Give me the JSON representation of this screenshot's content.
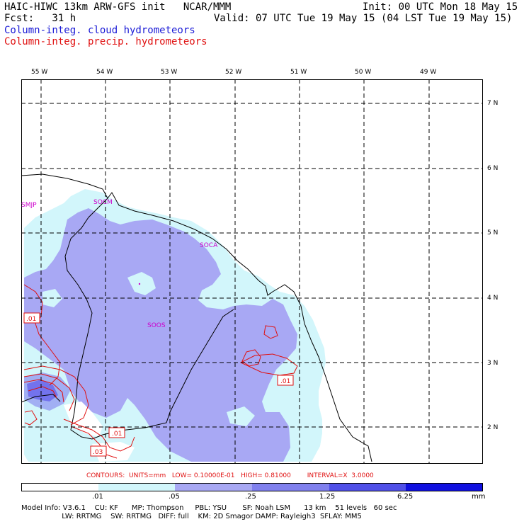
{
  "header": {
    "model_title": "HAIC-HIWC 13km ARW-GFS init   NCAR/MMM",
    "init_time": "Init: 00 UTC Mon 18 May 15",
    "forecast": "Fcst:   31 h",
    "valid_time": "Valid: 07 UTC Tue 19 May 15 (04 LST Tue 19 May 15)",
    "field_cloud": "Column-integ. cloud hydrometeors",
    "field_precip": "Column-integ. precip. hydrometeors"
  },
  "map": {
    "lon_labels": [
      "55 W",
      "54 W",
      "53 W",
      "52 W",
      "51 W",
      "50 W",
      "49 W"
    ],
    "lat_labels": [
      "7 N",
      "6 N",
      "5 N",
      "4 N",
      "3 N",
      "2 N"
    ],
    "stations": [
      "SMJP",
      "SOCM",
      "SOCA",
      "SOOS"
    ],
    "contour_labels": [
      ".01",
      ".01",
      ".01",
      ".03"
    ],
    "colors": {
      "cloud_light": "#d2f6fb",
      "cloud_mid": "#a8a8f4",
      "cloud_dark": "#6060ea",
      "precip_contour": "#e01010",
      "station": "#cc00cc",
      "grid": "#000000"
    }
  },
  "contour_info": "CONTOURS:  UNITS=mm   LOW= 0.10000E-01   HIGH= 0.81000        INTERVAL=X  3.0000",
  "scale": {
    "ticks": [
      ".01",
      ".05",
      ".25",
      "1.25",
      "6.25"
    ],
    "unit": "mm",
    "colors": [
      "#ffffff",
      "#d2f6fb",
      "#a8a8f4",
      "#8080ee",
      "#5050e8",
      "#1010e0"
    ]
  },
  "model_info": {
    "line1": "Model Info: V3.6.1    CU: KF      MP: Thompson     PBL: YSU       SF: Noah LSM      13 km    51 levels   60 sec",
    "line2": "                  LW: RRTMG    SW: RRTMG   DIFF: full    KM: 2D Smagor DAMP: Rayleigh3  SFLAY: MM5"
  }
}
